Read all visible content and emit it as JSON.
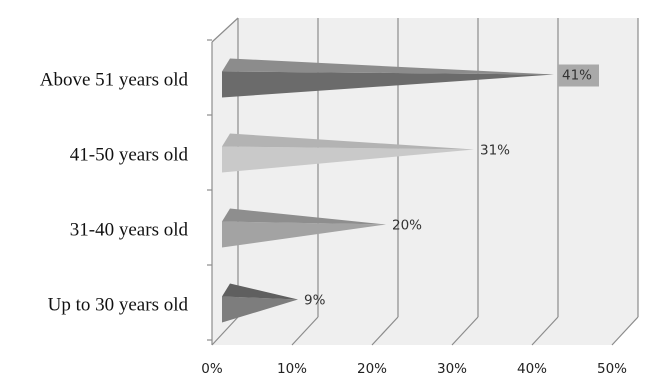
{
  "chart_data": {
    "type": "bar",
    "orientation": "horizontal",
    "style": "3d-pyramid",
    "categories": [
      "Above 51 years old",
      "41-50 years old",
      "31-40 years old",
      "Up to 30 years old"
    ],
    "values": [
      41,
      31,
      20,
      9
    ],
    "data_labels": [
      "41%",
      "31%",
      "20%",
      "9%"
    ],
    "label_boxed": [
      true,
      false,
      false,
      false
    ],
    "xticks": [
      "0%",
      "10%",
      "20%",
      "30%",
      "40%",
      "50%"
    ],
    "xlim": [
      0,
      50
    ],
    "title": "",
    "xlabel": "",
    "ylabel": "",
    "grid": true,
    "legend": "none",
    "colors": {
      "plot_bg": "#efefef",
      "grid": "#8c8c8c",
      "bars": [
        "#6b6b6b",
        "#c9c9c9",
        "#a3a3a3",
        "#7d7d7d"
      ],
      "bars_top": [
        "#8c8c8c",
        "#b3b3b3",
        "#8e8e8e",
        "#5f5f5f"
      ],
      "label_box": "#a9a9a9"
    }
  }
}
